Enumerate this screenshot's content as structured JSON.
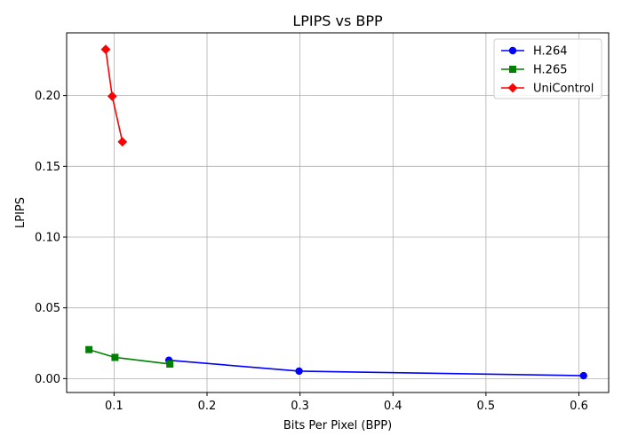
{
  "chart_data": {
    "type": "line",
    "title": "LPIPS vs BPP",
    "xlabel": "Bits Per Pixel (BPP)",
    "ylabel": "LPIPS",
    "xlim": [
      0.049,
      0.632
    ],
    "ylim": [
      -0.0098,
      0.2443
    ],
    "xticks": [
      0.1,
      0.2,
      0.3,
      0.4,
      0.5,
      0.6
    ],
    "xtick_labels": [
      "0.1",
      "0.2",
      "0.3",
      "0.4",
      "0.5",
      "0.6"
    ],
    "yticks": [
      0.0,
      0.05,
      0.1,
      0.15,
      0.2
    ],
    "ytick_labels": [
      "0.00",
      "0.05",
      "0.10",
      "0.15",
      "0.20"
    ],
    "grid": true,
    "legend_position": "top-right",
    "series": [
      {
        "name": "H.264",
        "color": "#0000ff",
        "marker": "circle",
        "x": [
          0.159,
          0.299,
          0.605
        ],
        "y": [
          0.013,
          0.0053,
          0.0021
        ]
      },
      {
        "name": "H.265",
        "color": "#008000",
        "marker": "square",
        "x": [
          0.073,
          0.101,
          0.16
        ],
        "y": [
          0.0205,
          0.015,
          0.0103
        ]
      },
      {
        "name": "UniControl",
        "color": "#ff0000",
        "marker": "diamond",
        "x": [
          0.091,
          0.098,
          0.109
        ],
        "y": [
          0.2326,
          0.1995,
          0.1673
        ]
      }
    ]
  }
}
